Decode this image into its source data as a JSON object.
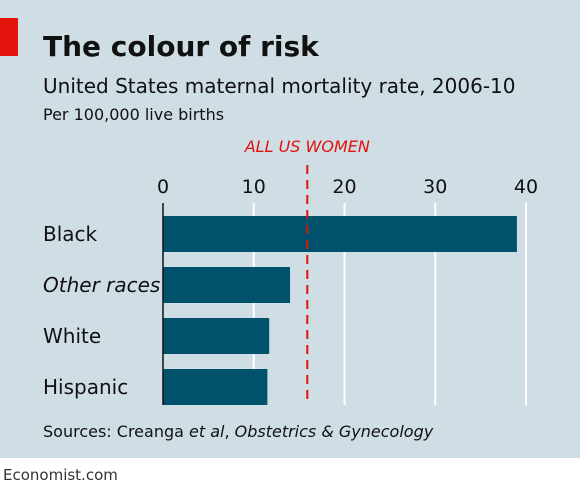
{
  "header": {
    "title": "The colour of risk",
    "subtitle": "United States maternal mortality rate, 2006-10",
    "unit": "Per 100,000 live births"
  },
  "chart_data": {
    "type": "bar",
    "orientation": "horizontal",
    "categories": [
      "Black",
      "Other races",
      "White",
      "Hispanic"
    ],
    "italic_categories": [
      "Other races"
    ],
    "values": [
      39.0,
      14.0,
      11.7,
      11.5
    ],
    "xlim": [
      0,
      40
    ],
    "xticks": [
      0,
      10,
      20,
      30,
      40
    ],
    "reference_line": {
      "label": "ALL US WOMEN",
      "value": 15.9,
      "color": "#e3120b"
    },
    "bar_color": "#00526c",
    "grid": true
  },
  "source": {
    "prefix": "Sources: Creanga ",
    "et_al": "et al",
    "sep": ", ",
    "journal": "Obstetrics & Gynecology"
  },
  "footer": "Economist.com",
  "colors": {
    "accent": "#e3120b",
    "panel": "#cfdde5",
    "bar": "#00526c"
  }
}
